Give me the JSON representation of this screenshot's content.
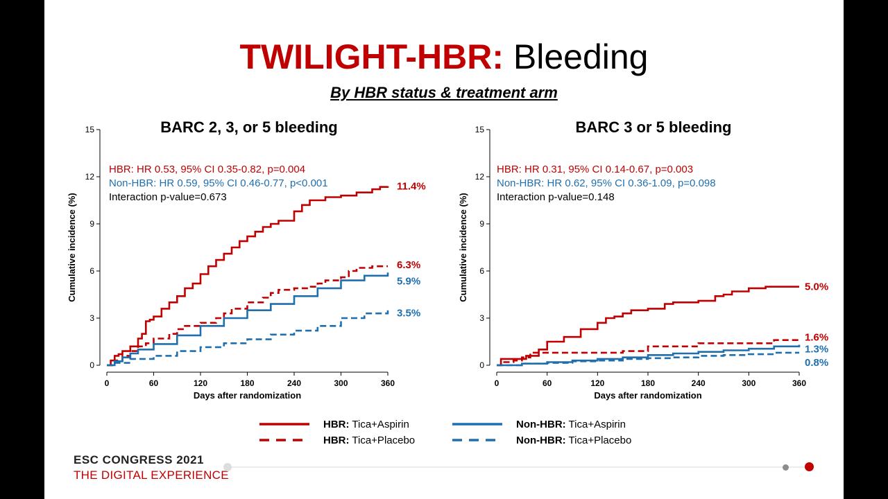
{
  "slide": {
    "title_highlight": "TWILIGHT-HBR:",
    "title_rest": " Bleeding",
    "subtitle": "By HBR status & treatment arm",
    "footer_line1": "ESC CONGRESS 2021",
    "footer_line2": "THE DIGITAL EXPERIENCE"
  },
  "colors": {
    "hbr": "#c00000",
    "nonhbr": "#1f6faf",
    "text": "#000000"
  },
  "legend": [
    {
      "group": "HBR:",
      "arm": " Tica+Aspirin",
      "color": "#c00000",
      "dash": false
    },
    {
      "group": "Non-HBR:",
      "arm": " Tica+Aspirin",
      "color": "#1f6faf",
      "dash": false
    },
    {
      "group": "HBR:",
      "arm": " Tica+Placebo",
      "color": "#c00000",
      "dash": true
    },
    {
      "group": "Non-HBR:",
      "arm": " Tica+Placebo",
      "color": "#1f6faf",
      "dash": true
    }
  ],
  "chart_data": [
    {
      "type": "line",
      "step": true,
      "title": "BARC 2, 3, or 5 bleeding",
      "xlabel": "Days after randomization",
      "ylabel": "Cumulative incidence (%)",
      "xlim": [
        0,
        360
      ],
      "ylim": [
        0,
        15
      ],
      "xticks": [
        0,
        60,
        120,
        180,
        240,
        300,
        360
      ],
      "yticks": [
        0,
        3,
        6,
        9,
        12,
        15
      ],
      "annotations": [
        {
          "text": "HBR: HR 0.53, 95% CI 0.35-0.82, p=0.004",
          "color": "#c00000"
        },
        {
          "text": "Non-HBR: HR 0.59, 95% CI 0.46-0.77, p<0.001",
          "color": "#1f6faf"
        },
        {
          "text": "Interaction p-value=0.673",
          "color": "#000000"
        }
      ],
      "series": [
        {
          "group": "HBR",
          "arm": "Tica+Aspirin",
          "color": "#c00000",
          "dash": false,
          "end_label": "11.4%",
          "x": [
            0,
            5,
            10,
            15,
            20,
            30,
            40,
            45,
            50,
            55,
            60,
            70,
            80,
            90,
            100,
            110,
            120,
            130,
            140,
            150,
            160,
            170,
            180,
            190,
            200,
            210,
            220,
            240,
            250,
            260,
            280,
            300,
            320,
            340,
            350,
            360
          ],
          "y": [
            0,
            0.3,
            0.6,
            0.7,
            0.9,
            1.2,
            1.7,
            2.0,
            2.8,
            2.9,
            3.1,
            3.6,
            4.0,
            4.4,
            4.9,
            5.2,
            5.8,
            6.3,
            6.7,
            7.1,
            7.5,
            7.9,
            8.2,
            8.5,
            8.8,
            9.0,
            9.2,
            9.8,
            10.2,
            10.5,
            10.7,
            10.8,
            11.0,
            11.2,
            11.35,
            11.4
          ]
        },
        {
          "group": "HBR",
          "arm": "Tica+Placebo",
          "color": "#c00000",
          "dash": true,
          "end_label": "6.3%",
          "x": [
            0,
            10,
            20,
            30,
            40,
            50,
            60,
            80,
            90,
            100,
            120,
            140,
            150,
            160,
            180,
            200,
            210,
            220,
            240,
            260,
            270,
            280,
            300,
            310,
            320,
            340,
            360
          ],
          "y": [
            0,
            0.3,
            0.6,
            0.9,
            1.2,
            1.4,
            1.7,
            2.0,
            2.3,
            2.5,
            2.7,
            3.0,
            3.3,
            3.6,
            4.0,
            4.3,
            4.6,
            4.8,
            4.9,
            5.0,
            5.2,
            5.4,
            5.6,
            6.0,
            6.2,
            6.3,
            6.3
          ]
        },
        {
          "group": "Non-HBR",
          "arm": "Tica+Aspirin",
          "color": "#1f6faf",
          "dash": false,
          "end_label": "5.9%",
          "x": [
            0,
            10,
            20,
            30,
            40,
            60,
            90,
            120,
            150,
            180,
            210,
            240,
            270,
            300,
            330,
            360
          ],
          "y": [
            0,
            0.25,
            0.5,
            0.75,
            1.0,
            1.35,
            1.9,
            2.5,
            3.0,
            3.5,
            3.9,
            4.4,
            4.9,
            5.4,
            5.7,
            5.9
          ]
        },
        {
          "group": "Non-HBR",
          "arm": "Tica+Placebo",
          "color": "#1f6faf",
          "dash": true,
          "end_label": "3.5%",
          "x": [
            0,
            10,
            30,
            60,
            90,
            120,
            150,
            180,
            210,
            240,
            270,
            300,
            330,
            360
          ],
          "y": [
            0,
            0.15,
            0.4,
            0.6,
            0.9,
            1.15,
            1.4,
            1.65,
            1.95,
            2.2,
            2.5,
            3.0,
            3.3,
            3.5
          ]
        }
      ]
    },
    {
      "type": "line",
      "step": true,
      "title": "BARC 3 or 5 bleeding",
      "xlabel": "Days after randomization",
      "ylabel": "Cumulative incidence (%)",
      "xlim": [
        0,
        360
      ],
      "ylim": [
        0,
        15
      ],
      "xticks": [
        0,
        60,
        120,
        180,
        240,
        300,
        360
      ],
      "yticks": [
        0,
        3,
        6,
        9,
        12,
        15
      ],
      "annotations": [
        {
          "text": "HBR: HR 0.31, 95% CI 0.14-0.67, p=0.003",
          "color": "#c00000"
        },
        {
          "text": "Non-HBR: HR 0.62, 95% CI 0.36-1.09, p=0.098",
          "color": "#1f6faf"
        },
        {
          "text": "Interaction p-value=0.148",
          "color": "#000000"
        }
      ],
      "series": [
        {
          "group": "HBR",
          "arm": "Tica+Aspirin",
          "color": "#c00000",
          "dash": false,
          "end_label": "5.0%",
          "x": [
            0,
            5,
            20,
            35,
            50,
            60,
            80,
            100,
            120,
            130,
            140,
            150,
            160,
            180,
            200,
            210,
            240,
            260,
            270,
            280,
            300,
            320,
            340,
            360
          ],
          "y": [
            0,
            0.4,
            0.4,
            0.6,
            1.0,
            1.5,
            1.8,
            2.3,
            2.7,
            3.0,
            3.1,
            3.3,
            3.5,
            3.6,
            3.9,
            4.0,
            4.1,
            4.4,
            4.5,
            4.7,
            4.9,
            5.0,
            5.0,
            5.0
          ]
        },
        {
          "group": "HBR",
          "arm": "Tica+Placebo",
          "color": "#c00000",
          "dash": true,
          "end_label": "1.6%",
          "x": [
            0,
            5,
            20,
            30,
            40,
            60,
            90,
            120,
            150,
            180,
            210,
            240,
            270,
            300,
            330,
            360
          ],
          "y": [
            0,
            0.2,
            0.3,
            0.5,
            0.8,
            0.8,
            0.8,
            0.8,
            0.9,
            1.2,
            1.2,
            1.4,
            1.4,
            1.4,
            1.6,
            1.6
          ]
        },
        {
          "group": "Non-HBR",
          "arm": "Tica+Aspirin",
          "color": "#1f6faf",
          "dash": false,
          "end_label": "1.3%",
          "x": [
            0,
            30,
            60,
            90,
            120,
            150,
            180,
            210,
            240,
            270,
            300,
            330,
            360
          ],
          "y": [
            0,
            0.1,
            0.2,
            0.3,
            0.4,
            0.5,
            0.65,
            0.75,
            0.85,
            0.95,
            1.05,
            1.2,
            1.3
          ]
        },
        {
          "group": "Non-HBR",
          "arm": "Tica+Placebo",
          "color": "#1f6faf",
          "dash": true,
          "end_label": "0.8%",
          "x": [
            0,
            30,
            60,
            90,
            120,
            150,
            180,
            210,
            240,
            270,
            300,
            330,
            360
          ],
          "y": [
            0,
            0.1,
            0.15,
            0.25,
            0.3,
            0.4,
            0.45,
            0.5,
            0.6,
            0.65,
            0.7,
            0.8,
            0.8
          ]
        }
      ]
    }
  ]
}
